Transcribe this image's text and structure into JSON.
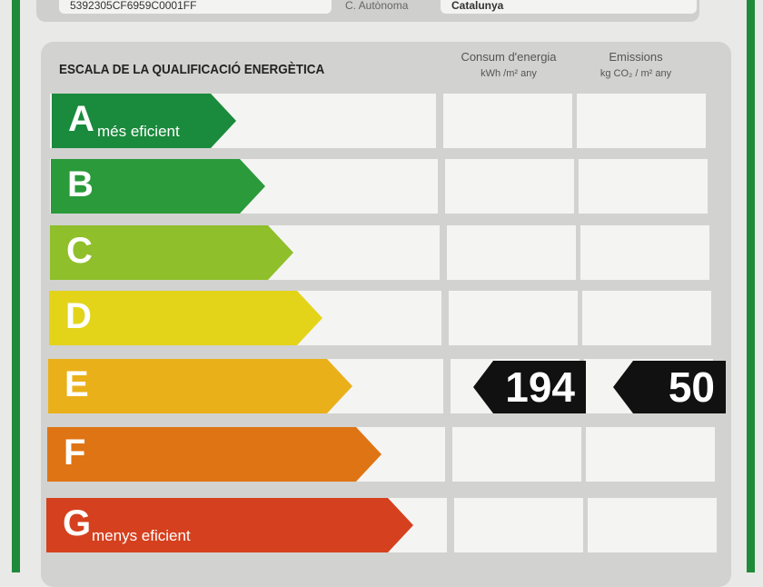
{
  "header": {
    "reference": "5392305CF6959C0001FF",
    "region_label": "C. Autònoma",
    "region_value": "Catalunya"
  },
  "scale": {
    "title": "ESCALA DE LA QUALIFICACIÓ ENERGÈTICA",
    "col_energy": {
      "label": "Consum d'energia",
      "unit": "kWh /m² any"
    },
    "col_emissions": {
      "label": "Emissions",
      "unit": "kg CO₂ / m² any"
    },
    "classes": [
      {
        "letter": "A",
        "subtitle": "més eficient",
        "color": "#1a8a3c"
      },
      {
        "letter": "B",
        "subtitle": "",
        "color": "#2a9a3a"
      },
      {
        "letter": "C",
        "subtitle": "",
        "color": "#8fbf2a"
      },
      {
        "letter": "D",
        "subtitle": "",
        "color": "#e3d41a"
      },
      {
        "letter": "E",
        "subtitle": "",
        "color": "#eab01a"
      },
      {
        "letter": "F",
        "subtitle": "",
        "color": "#df7414"
      },
      {
        "letter": "G",
        "subtitle": "menys eficient",
        "color": "#d5401e"
      }
    ],
    "rating": {
      "class": "E",
      "energy": "194",
      "emissions": "50"
    }
  }
}
